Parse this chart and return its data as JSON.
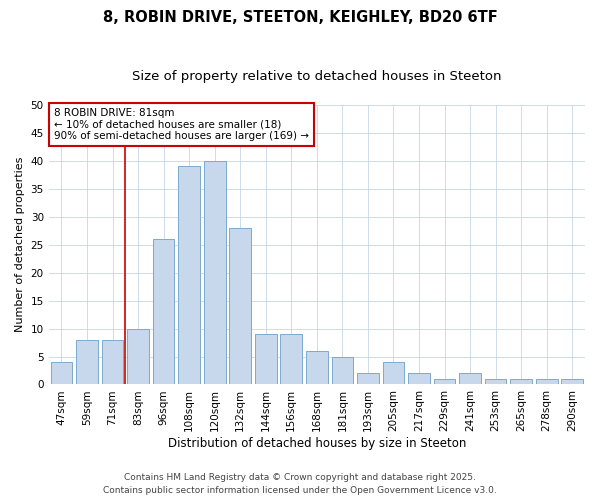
{
  "title1": "8, ROBIN DRIVE, STEETON, KEIGHLEY, BD20 6TF",
  "title2": "Size of property relative to detached houses in Steeton",
  "xlabel": "Distribution of detached houses by size in Steeton",
  "ylabel": "Number of detached properties",
  "categories": [
    "47sqm",
    "59sqm",
    "71sqm",
    "83sqm",
    "96sqm",
    "108sqm",
    "120sqm",
    "132sqm",
    "144sqm",
    "156sqm",
    "168sqm",
    "181sqm",
    "193sqm",
    "205sqm",
    "217sqm",
    "229sqm",
    "241sqm",
    "253sqm",
    "265sqm",
    "278sqm",
    "290sqm"
  ],
  "values": [
    4,
    8,
    8,
    10,
    26,
    39,
    40,
    28,
    9,
    9,
    6,
    5,
    2,
    4,
    2,
    1,
    2,
    1,
    1,
    1,
    1
  ],
  "bar_color": "#c8d8ec",
  "bar_edge_color": "#7aabcf",
  "vline_color": "#cc0000",
  "annotation_box_text": "8 ROBIN DRIVE: 81sqm\n← 10% of detached houses are smaller (18)\n90% of semi-detached houses are larger (169) →",
  "annotation_box_color": "#cc0000",
  "ylim": [
    0,
    50
  ],
  "yticks": [
    0,
    5,
    10,
    15,
    20,
    25,
    30,
    35,
    40,
    45,
    50
  ],
  "background_color": "#ffffff",
  "plot_bg_color": "#ffffff",
  "grid_color": "#c8d4e8",
  "footer1": "Contains HM Land Registry data © Crown copyright and database right 2025.",
  "footer2": "Contains public sector information licensed under the Open Government Licence v3.0.",
  "title1_fontsize": 10.5,
  "title2_fontsize": 9.5,
  "xlabel_fontsize": 8.5,
  "ylabel_fontsize": 8,
  "tick_fontsize": 7.5,
  "footer_fontsize": 6.5,
  "annotation_fontsize": 7.5,
  "vline_index": 3
}
